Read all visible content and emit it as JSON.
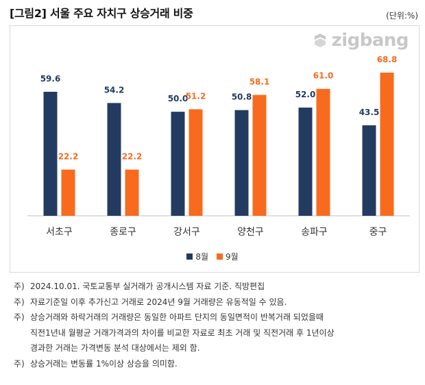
{
  "header": {
    "title": "[그림2] 서울 주요 자치구 상승거래 비중",
    "unit": "(단위:%)"
  },
  "logo": {
    "text": "zigbang",
    "icon": "zigbang-logo-icon"
  },
  "colors": {
    "aug": "#243b61",
    "sep": "#f86b1f",
    "axis": "#bfbfbf"
  },
  "chart_data": {
    "type": "bar",
    "categories": [
      "서초구",
      "종로구",
      "강서구",
      "양천구",
      "송파구",
      "중구"
    ],
    "series": [
      {
        "name": "8월",
        "values": [
          59.6,
          54.2,
          50.0,
          50.8,
          52.0,
          43.5
        ]
      },
      {
        "name": "9월",
        "values": [
          22.2,
          22.2,
          51.2,
          58.1,
          61.0,
          68.8
        ]
      }
    ],
    "value_labels": [
      [
        "59.6",
        "54.2",
        "50.0",
        "50.8",
        "52.0",
        "43.5"
      ],
      [
        "22.2",
        "22.2",
        "51.2",
        "58.1",
        "61.0",
        "68.8"
      ]
    ],
    "ylim": [
      0,
      80
    ],
    "grid": false,
    "legend": "bottom"
  },
  "legend": {
    "aug": "8월",
    "sep": "9월"
  },
  "notes": [
    {
      "prefix": "주)",
      "lines": [
        "2024.10.01. 국토교통부 실거래가 공개시스템 자료 기준. 직방편집"
      ]
    },
    {
      "prefix": "주)",
      "lines": [
        "자료기준일 이후 추가신고 거래로 2024년 9월 거래량은 유동적일 수 있음."
      ]
    },
    {
      "prefix": "주)",
      "lines": [
        "상승거래와 하락거래의 거래량은 동일한 아파트 단지의 동일면적이 반복거래 되었을때",
        "직전1년내 월평균 거래가격과의 차이를 비교한 자료로 최초 거래 및 직전거래 후 1년이상",
        "경과한 거래는 가격변동 분석 대상에서는 제외 함."
      ]
    },
    {
      "prefix": "주)",
      "lines": [
        "상승거래는 변동률 1%이상 상승을 의미함."
      ]
    }
  ]
}
